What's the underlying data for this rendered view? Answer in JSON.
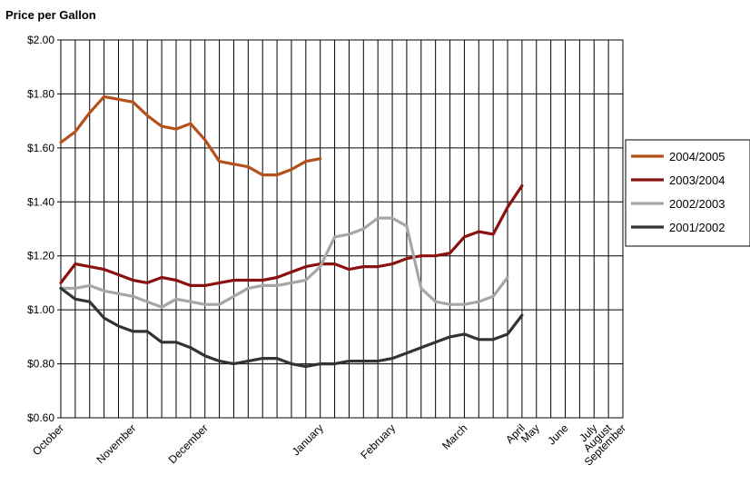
{
  "chart_data": {
    "type": "line",
    "title": "Price per Gallon",
    "xlabel": "",
    "ylabel": "",
    "ylim": [
      0.6,
      2.0
    ],
    "y_ticks": [
      2.0,
      1.8,
      1.6,
      1.4,
      1.2,
      1.0,
      0.8,
      0.6
    ],
    "y_tick_labels": [
      "$2.00",
      "$1.80",
      "$1.60",
      "$1.40",
      "$1.20",
      "$1.00",
      "$0.80",
      "$0.60"
    ],
    "x_points": 40,
    "x_labels": [
      {
        "index": 0,
        "label": "October"
      },
      {
        "index": 5,
        "label": "November"
      },
      {
        "index": 10,
        "label": "December"
      },
      {
        "index": 18,
        "label": "January"
      },
      {
        "index": 23,
        "label": "February"
      },
      {
        "index": 28,
        "label": "March"
      },
      {
        "index": 32,
        "label": "April"
      },
      {
        "index": 33,
        "label": "May"
      },
      {
        "index": 35,
        "label": "June"
      },
      {
        "index": 37,
        "label": "July"
      },
      {
        "index": 38,
        "label": "August"
      },
      {
        "index": 39,
        "label": "September"
      }
    ],
    "grid": true,
    "legend_position": "right",
    "series": [
      {
        "name": "2004/2005",
        "color": "#b5501c",
        "values": [
          1.62,
          1.66,
          1.73,
          1.79,
          1.78,
          1.77,
          1.72,
          1.68,
          1.67,
          1.69,
          1.63,
          1.55,
          1.54,
          1.53,
          1.5,
          1.5,
          1.52,
          1.55,
          1.56
        ]
      },
      {
        "name": "2003/2004",
        "color": "#8b1010",
        "values": [
          1.1,
          1.17,
          1.16,
          1.15,
          1.13,
          1.11,
          1.1,
          1.12,
          1.11,
          1.09,
          1.09,
          1.1,
          1.11,
          1.11,
          1.11,
          1.12,
          1.14,
          1.16,
          1.17,
          1.17,
          1.15,
          1.16,
          1.16,
          1.17,
          1.19,
          1.2,
          1.2,
          1.21,
          1.27,
          1.29,
          1.28,
          1.38,
          1.46
        ]
      },
      {
        "name": "2002/2003",
        "color": "#a6a6a6",
        "values": [
          1.08,
          1.08,
          1.09,
          1.07,
          1.06,
          1.05,
          1.03,
          1.01,
          1.04,
          1.03,
          1.02,
          1.02,
          1.05,
          1.08,
          1.09,
          1.09,
          1.1,
          1.11,
          1.16,
          1.27,
          1.28,
          1.3,
          1.34,
          1.34,
          1.31,
          1.08,
          1.03,
          1.02,
          1.02,
          1.03,
          1.05,
          1.12
        ]
      },
      {
        "name": "2001/2002",
        "color": "#333333",
        "values": [
          1.08,
          1.04,
          1.03,
          0.97,
          0.94,
          0.92,
          0.92,
          0.88,
          0.88,
          0.86,
          0.83,
          0.81,
          0.8,
          0.81,
          0.82,
          0.82,
          0.8,
          0.79,
          0.8,
          0.8,
          0.81,
          0.81,
          0.81,
          0.82,
          0.84,
          0.86,
          0.88,
          0.9,
          0.91,
          0.89,
          0.89,
          0.91,
          0.98
        ]
      }
    ]
  }
}
